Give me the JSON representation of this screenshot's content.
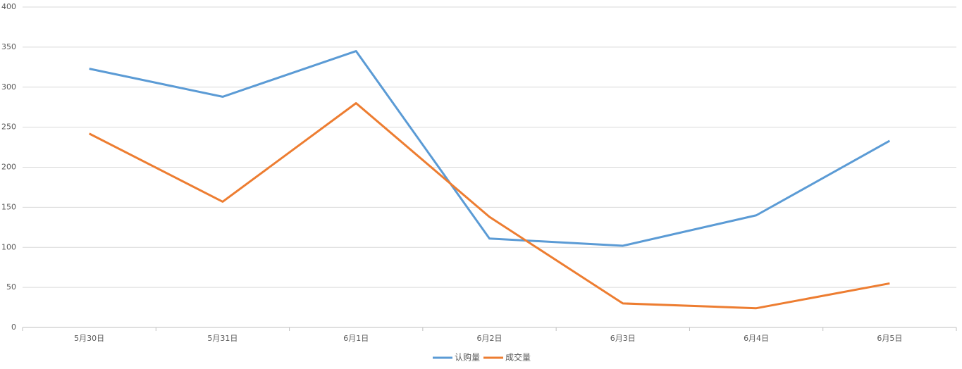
{
  "chart_data": {
    "type": "line",
    "categories": [
      "5月30日",
      "5月31日",
      "6月1日",
      "6月2日",
      "6月3日",
      "6月4日",
      "6月5日"
    ],
    "series": [
      {
        "name": "认购量",
        "color": "#5b9bd5",
        "values": [
          323,
          288,
          345,
          111,
          102,
          140,
          233
        ]
      },
      {
        "name": "成交量",
        "color": "#ed7d31",
        "values": [
          242,
          157,
          280,
          138,
          30,
          24,
          55
        ]
      }
    ],
    "ylim": [
      0,
      400
    ],
    "yticks": [
      0,
      50,
      100,
      150,
      200,
      250,
      300,
      350,
      400
    ],
    "grid": true,
    "legend": "bottom"
  }
}
